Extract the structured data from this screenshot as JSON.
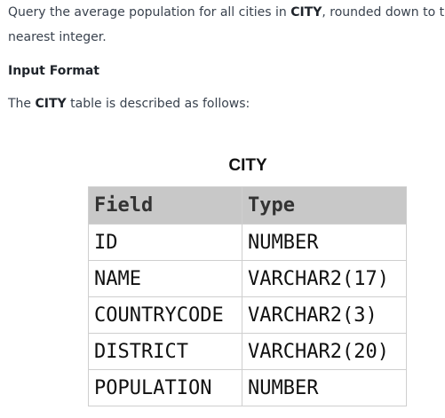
{
  "description": {
    "line1_prefix": "Query the average population for all cities in ",
    "line1_bold": "CITY",
    "line1_suffix": ", rounded down to the",
    "line2": "nearest integer."
  },
  "input_format": {
    "heading": "Input Format",
    "text_prefix": "The ",
    "text_bold": "CITY",
    "text_suffix": " table is described as follows:"
  },
  "table": {
    "title": "CITY",
    "headers": [
      "Field",
      "Type"
    ],
    "rows": [
      [
        "ID",
        "NUMBER"
      ],
      [
        "NAME",
        "VARCHAR2(17)"
      ],
      [
        "COUNTRYCODE",
        "VARCHAR2(3)"
      ],
      [
        "DISTRICT",
        "VARCHAR2(20)"
      ],
      [
        "POPULATION",
        "NUMBER"
      ]
    ]
  }
}
